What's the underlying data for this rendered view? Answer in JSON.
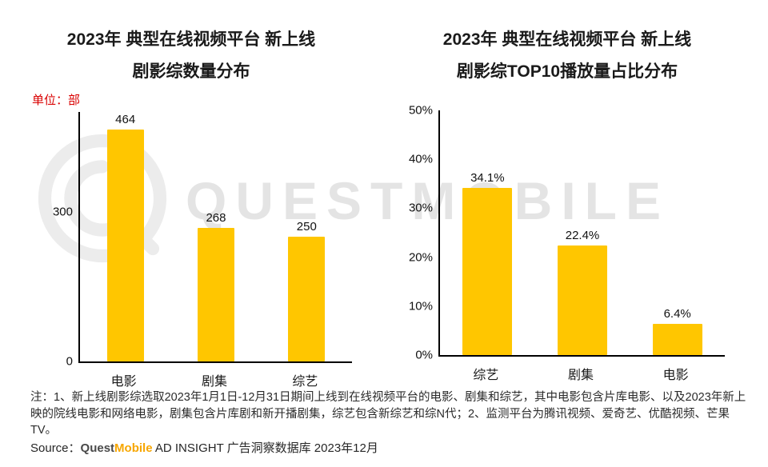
{
  "watermark": {
    "text": "QUESTMOBILE"
  },
  "left_chart": {
    "title_line1": "2023年 典型在线视频平台 新上线",
    "title_line2": "剧影综数量分布",
    "unit": "单位：部"
  },
  "right_chart": {
    "title_line1": "2023年 典型在线视频平台 新上线",
    "title_line2": "剧影综TOP10播放量占比分布"
  },
  "chart_data": [
    {
      "type": "bar",
      "title": "2023年 典型在线视频平台 新上线 剧影综数量分布",
      "unit": "单位：部",
      "categories": [
        "电影",
        "剧集",
        "综艺"
      ],
      "values": [
        464,
        268,
        250
      ],
      "data_labels": [
        "464",
        "268",
        "250"
      ],
      "ylim": [
        0,
        500
      ],
      "yticks": [
        {
          "value": 0,
          "label": "0"
        },
        {
          "value": 300,
          "label": "300"
        }
      ],
      "grid": false,
      "legend": "none",
      "bar_color": "#FFC600"
    },
    {
      "type": "bar",
      "title": "2023年 典型在线视频平台 新上线 剧影综TOP10播放量占比分布",
      "categories": [
        "综艺",
        "剧集",
        "电影"
      ],
      "values": [
        34.1,
        22.4,
        6.4
      ],
      "data_labels": [
        "34.1%",
        "22.4%",
        "6.4%"
      ],
      "ylim": [
        0,
        50
      ],
      "yticks": [
        {
          "value": 0,
          "label": "0%"
        },
        {
          "value": 10,
          "label": "10%"
        },
        {
          "value": 20,
          "label": "20%"
        },
        {
          "value": 30,
          "label": "30%"
        },
        {
          "value": 40,
          "label": "40%"
        },
        {
          "value": 50,
          "label": "50%"
        }
      ],
      "grid": false,
      "legend": "none",
      "bar_color": "#FFC600"
    }
  ],
  "footer": {
    "note": "注：1、新上线剧影综选取2023年1月1日-12月31日期间上线到在线视频平台的电影、剧集和综艺，其中电影包含片库电影、以及2023年新上映的院线电影和网络电影，剧集包含片库剧和新开播剧集，综艺包含新综艺和综N代；2、监测平台为腾讯视频、爱奇艺、优酷视频、芒果TV。",
    "source_prefix": "Source：",
    "brand_quest": "Quest",
    "brand_mobile": "Mobile",
    "source_suffix": " AD INSIGHT 广告洞察数据库 2023年12月"
  },
  "colors": {
    "bar": "#FFC600",
    "unit_label": "#D90000",
    "brand_mobile": "#F7A600",
    "watermark": "#E4E4E4"
  }
}
